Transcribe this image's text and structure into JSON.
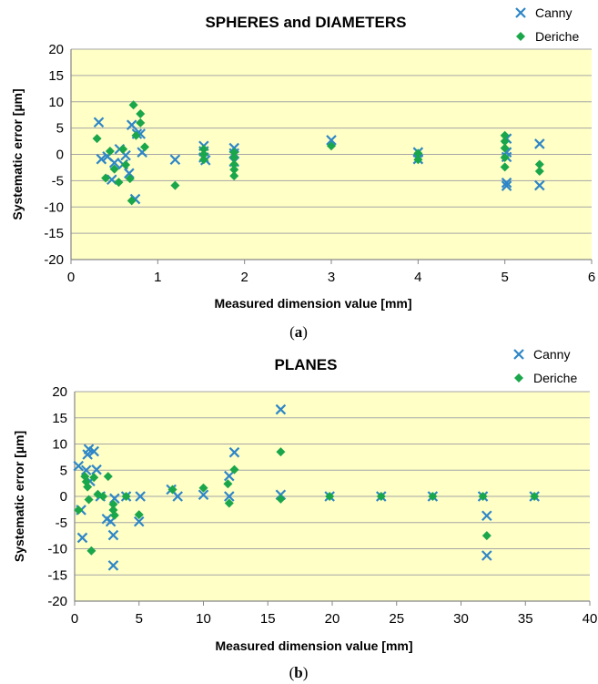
{
  "chart_data": [
    {
      "type": "scatter",
      "title": "SPHERES and DIAMETERS",
      "xlabel": "Measured  dimension value [mm]",
      "ylabel": "Systematic error [µm]",
      "xlim": [
        0,
        6
      ],
      "ylim": [
        -20,
        20
      ],
      "xticks": [
        "0",
        "1",
        "2",
        "3",
        "4",
        "5",
        "6"
      ],
      "yticks": [
        "20",
        "15",
        "10",
        "5",
        "0",
        "-5",
        "-10",
        "-15",
        "-20"
      ],
      "grid": true,
      "legend": "top-right",
      "panel_label": "a",
      "series": [
        {
          "name": "Canny",
          "color": "#2e86c8",
          "marker": "x",
          "points": [
            [
              0.32,
              6.1
            ],
            [
              0.35,
              -0.9
            ],
            [
              0.42,
              -0.4
            ],
            [
              0.47,
              -4.8
            ],
            [
              0.5,
              -1.6
            ],
            [
              0.56,
              1.0
            ],
            [
              0.6,
              -1.9
            ],
            [
              0.63,
              -0.2
            ],
            [
              0.67,
              -3.6
            ],
            [
              0.7,
              5.6
            ],
            [
              0.74,
              -8.5
            ],
            [
              0.76,
              3.9
            ],
            [
              0.8,
              3.9
            ],
            [
              0.82,
              0.4
            ],
            [
              1.2,
              -1.0
            ],
            [
              1.53,
              1.6
            ],
            [
              1.53,
              0.6
            ],
            [
              1.53,
              -0.6
            ],
            [
              1.55,
              -1.1
            ],
            [
              1.88,
              1.2
            ],
            [
              1.88,
              0.2
            ],
            [
              1.88,
              -1.4
            ],
            [
              3.0,
              2.7
            ],
            [
              4.0,
              0.4
            ],
            [
              4.0,
              -0.9
            ],
            [
              5.02,
              3.0
            ],
            [
              5.02,
              0.4
            ],
            [
              5.02,
              -0.5
            ],
            [
              5.02,
              -5.4
            ],
            [
              5.02,
              -6.0
            ],
            [
              5.4,
              2.0
            ],
            [
              5.4,
              -5.9
            ]
          ]
        },
        {
          "name": "Deriche",
          "color": "#1aa64a",
          "marker": "diamond",
          "points": [
            [
              0.3,
              3.0
            ],
            [
              0.4,
              -4.5
            ],
            [
              0.45,
              0.6
            ],
            [
              0.5,
              -2.8
            ],
            [
              0.55,
              -5.3
            ],
            [
              0.6,
              1.0
            ],
            [
              0.63,
              -2.0
            ],
            [
              0.68,
              -4.6
            ],
            [
              0.7,
              -8.8
            ],
            [
              0.72,
              9.4
            ],
            [
              0.75,
              3.6
            ],
            [
              0.8,
              7.7
            ],
            [
              0.8,
              6.0
            ],
            [
              0.85,
              1.4
            ],
            [
              1.2,
              -5.9
            ],
            [
              1.53,
              1.0
            ],
            [
              1.53,
              0.0
            ],
            [
              1.53,
              -1.0
            ],
            [
              1.88,
              0.4
            ],
            [
              1.88,
              -0.6
            ],
            [
              1.88,
              -1.9
            ],
            [
              1.88,
              -2.9
            ],
            [
              1.88,
              -4.1
            ],
            [
              3.0,
              1.6
            ],
            [
              4.0,
              0.2
            ],
            [
              4.0,
              -1.0
            ],
            [
              5.0,
              3.6
            ],
            [
              5.0,
              2.5
            ],
            [
              5.0,
              1.2
            ],
            [
              5.0,
              -0.6
            ],
            [
              5.0,
              -2.4
            ],
            [
              5.4,
              -1.9
            ],
            [
              5.4,
              -3.2
            ]
          ]
        }
      ]
    },
    {
      "type": "scatter",
      "title": "PLANES",
      "xlabel": "Measured dimension value [mm]",
      "ylabel": "Systematic error [µm]",
      "xlim": [
        0,
        40
      ],
      "ylim": [
        -20,
        20
      ],
      "xticks": [
        "0",
        "5",
        "10",
        "15",
        "20",
        "25",
        "30",
        "35",
        "40"
      ],
      "yticks": [
        "20",
        "15",
        "10",
        "5",
        "0",
        "-5",
        "-10",
        "-15",
        "-20"
      ],
      "grid": true,
      "legend": "top-right",
      "panel_label": "b",
      "series": [
        {
          "name": "Canny",
          "color": "#2e86c8",
          "marker": "x",
          "points": [
            [
              0.3,
              5.8
            ],
            [
              0.5,
              -2.6
            ],
            [
              0.6,
              -7.9
            ],
            [
              0.9,
              5.0
            ],
            [
              1.0,
              8.0
            ],
            [
              1.1,
              9.0
            ],
            [
              1.2,
              2.9
            ],
            [
              1.5,
              8.6
            ],
            [
              1.7,
              5.1
            ],
            [
              2.0,
              0.0
            ],
            [
              2.5,
              -4.3
            ],
            [
              2.8,
              -4.8
            ],
            [
              3.0,
              -13.2
            ],
            [
              3.0,
              -7.4
            ],
            [
              3.1,
              -0.4
            ],
            [
              4.0,
              0.0
            ],
            [
              5.0,
              -4.8
            ],
            [
              5.1,
              0.0
            ],
            [
              7.5,
              1.3
            ],
            [
              8.0,
              0.0
            ],
            [
              10.0,
              0.3
            ],
            [
              12.0,
              3.9
            ],
            [
              12.0,
              0.0
            ],
            [
              12.4,
              8.4
            ],
            [
              16.0,
              16.6
            ],
            [
              16.0,
              0.3
            ],
            [
              19.8,
              0.0
            ],
            [
              23.8,
              0.0
            ],
            [
              27.8,
              0.0
            ],
            [
              31.7,
              0.0
            ],
            [
              32.0,
              -3.7
            ],
            [
              32.0,
              -11.3
            ],
            [
              35.7,
              0.0
            ]
          ]
        },
        {
          "name": "Deriche",
          "color": "#1aa64a",
          "marker": "diamond",
          "points": [
            [
              0.3,
              -2.6
            ],
            [
              0.8,
              3.8
            ],
            [
              0.9,
              2.8
            ],
            [
              1.0,
              1.8
            ],
            [
              1.1,
              -0.6
            ],
            [
              1.3,
              -10.4
            ],
            [
              1.5,
              3.6
            ],
            [
              1.8,
              0.4
            ],
            [
              2.2,
              0.0
            ],
            [
              2.6,
              3.8
            ],
            [
              3.0,
              -1.5
            ],
            [
              3.0,
              -2.6
            ],
            [
              3.1,
              -3.6
            ],
            [
              4.0,
              0.0
            ],
            [
              5.0,
              -3.5
            ],
            [
              7.6,
              1.3
            ],
            [
              10.0,
              1.6
            ],
            [
              11.9,
              2.4
            ],
            [
              12.0,
              -1.3
            ],
            [
              12.4,
              5.1
            ],
            [
              16.0,
              8.5
            ],
            [
              16.0,
              -0.5
            ],
            [
              19.8,
              0.0
            ],
            [
              23.8,
              0.0
            ],
            [
              27.8,
              0.0
            ],
            [
              31.7,
              0.0
            ],
            [
              32.0,
              -7.5
            ],
            [
              35.7,
              0.0
            ]
          ]
        }
      ]
    }
  ]
}
